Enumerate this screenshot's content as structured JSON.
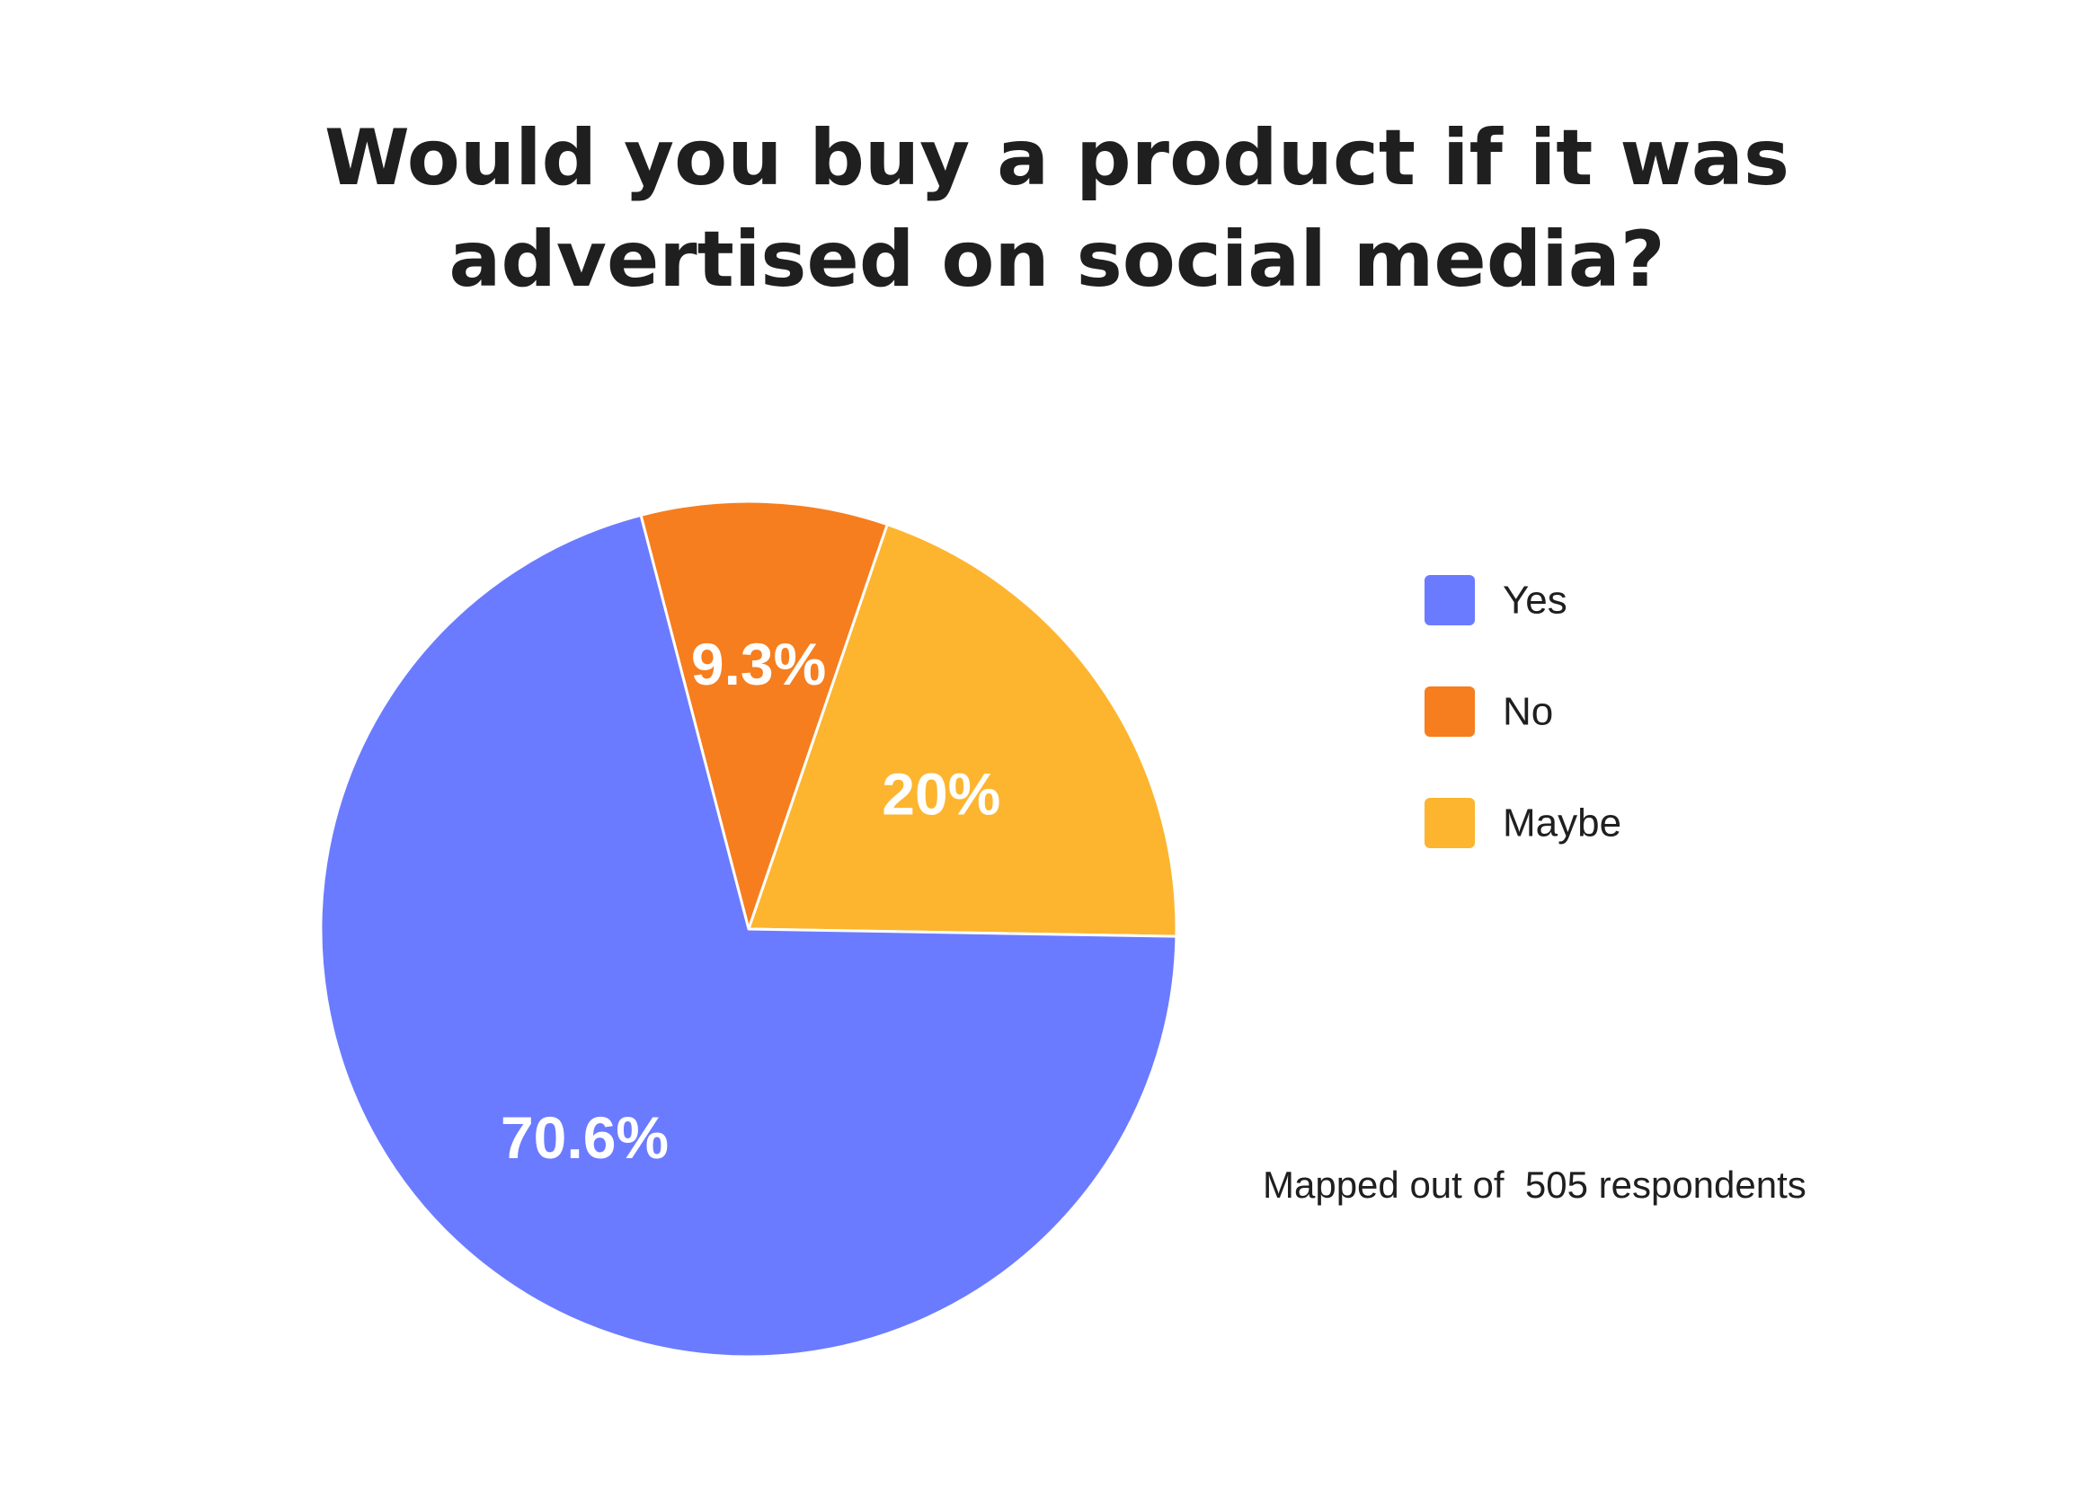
{
  "chart_data": {
    "type": "pie",
    "title": "Would you buy a product if it was advertised on social media?",
    "title_lines": [
      "Would you buy a product if it was",
      "advertised on social media?"
    ],
    "categories": [
      "Yes",
      "No",
      "Maybe"
    ],
    "values": [
      70.6,
      9.3,
      20
    ],
    "data_labels": [
      "70.6%",
      "9.3%",
      "20%"
    ],
    "colors": [
      "#6b7bff",
      "#f67e1e",
      "#fdb52f"
    ],
    "legend_position": "right",
    "note": "Mapped out of  505 respondents"
  }
}
